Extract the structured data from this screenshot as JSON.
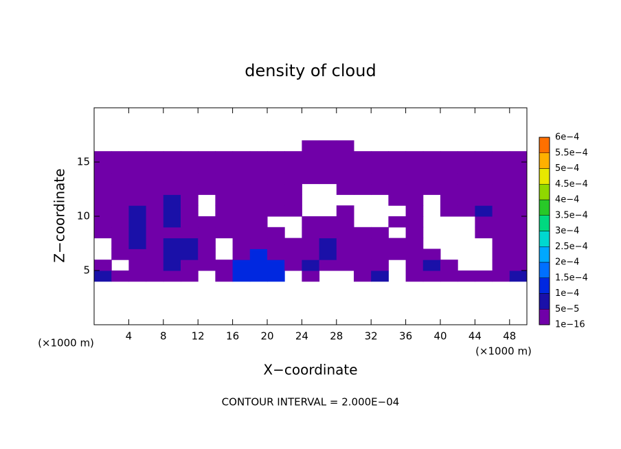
{
  "chart_data": {
    "type": "contour",
    "title": "density of cloud",
    "x_label": "X−coordinate",
    "y_label": "Z−coordinate",
    "x_unit": "(×1000 m)",
    "y_unit": "(×1000 m)",
    "footnote": "CONTOUR INTERVAL = 2.000E−04",
    "xlim": [
      0,
      50
    ],
    "ylim": [
      0,
      20
    ],
    "xticks": [
      4,
      8,
      12,
      16,
      20,
      24,
      28,
      32,
      36,
      40,
      44,
      48
    ],
    "yticks": [
      5,
      10,
      15
    ],
    "x": [
      1,
      3,
      5,
      7,
      9,
      11,
      13,
      15,
      17,
      19,
      21,
      23,
      25,
      27,
      29,
      31,
      33,
      35,
      37,
      39,
      41,
      43,
      45,
      47,
      49
    ],
    "z": [
      4.5,
      5.5,
      6.5,
      7.5,
      8.5,
      9.5,
      10.5,
      11.5,
      12.5,
      13.5,
      14.5,
      15.5,
      16.5
    ],
    "values": [
      [
        6e-05,
        2e-05,
        2e-05,
        2e-05,
        2e-05,
        2e-05,
        null,
        2e-05,
        0.00012,
        0.00012,
        0.00012,
        null,
        2e-05,
        null,
        null,
        2e-05,
        6e-05,
        null,
        2e-05,
        2e-05,
        2e-05,
        2e-05,
        2e-05,
        2e-05,
        6e-05
      ],
      [
        2e-05,
        null,
        2e-05,
        2e-05,
        6e-05,
        2e-05,
        2e-05,
        2e-05,
        0.00012,
        0.00012,
        0.00012,
        2e-05,
        6e-05,
        2e-05,
        2e-05,
        2e-05,
        2e-05,
        null,
        2e-05,
        6e-05,
        2e-05,
        null,
        null,
        2e-05,
        2e-05
      ],
      [
        null,
        2e-05,
        2e-05,
        2e-05,
        6e-05,
        6e-05,
        2e-05,
        null,
        2e-05,
        0.00012,
        2e-05,
        2e-05,
        2e-05,
        6e-05,
        2e-05,
        2e-05,
        2e-05,
        2e-05,
        2e-05,
        2e-05,
        null,
        null,
        null,
        2e-05,
        2e-05
      ],
      [
        null,
        2e-05,
        6e-05,
        2e-05,
        6e-05,
        6e-05,
        2e-05,
        null,
        2e-05,
        2e-05,
        2e-05,
        2e-05,
        2e-05,
        6e-05,
        2e-05,
        2e-05,
        2e-05,
        2e-05,
        2e-05,
        null,
        null,
        null,
        null,
        2e-05,
        2e-05
      ],
      [
        2e-05,
        2e-05,
        6e-05,
        2e-05,
        2e-05,
        2e-05,
        2e-05,
        2e-05,
        2e-05,
        2e-05,
        2e-05,
        null,
        2e-05,
        2e-05,
        2e-05,
        2e-05,
        2e-05,
        null,
        2e-05,
        null,
        null,
        null,
        2e-05,
        2e-05,
        2e-05
      ],
      [
        2e-05,
        2e-05,
        6e-05,
        2e-05,
        6e-05,
        2e-05,
        2e-05,
        2e-05,
        2e-05,
        2e-05,
        null,
        null,
        2e-05,
        2e-05,
        2e-05,
        null,
        null,
        2e-05,
        2e-05,
        null,
        null,
        null,
        2e-05,
        2e-05,
        2e-05
      ],
      [
        2e-05,
        2e-05,
        6e-05,
        2e-05,
        6e-05,
        2e-05,
        null,
        2e-05,
        2e-05,
        2e-05,
        2e-05,
        2e-05,
        null,
        null,
        2e-05,
        null,
        null,
        null,
        2e-05,
        null,
        2e-05,
        2e-05,
        6e-05,
        2e-05,
        2e-05
      ],
      [
        2e-05,
        2e-05,
        2e-05,
        2e-05,
        6e-05,
        2e-05,
        null,
        2e-05,
        2e-05,
        2e-05,
        2e-05,
        2e-05,
        null,
        null,
        null,
        null,
        null,
        2e-05,
        2e-05,
        null,
        2e-05,
        2e-05,
        2e-05,
        2e-05,
        2e-05
      ],
      [
        2e-05,
        2e-05,
        2e-05,
        2e-05,
        2e-05,
        2e-05,
        2e-05,
        2e-05,
        2e-05,
        2e-05,
        2e-05,
        2e-05,
        null,
        null,
        2e-05,
        2e-05,
        2e-05,
        2e-05,
        2e-05,
        2e-05,
        2e-05,
        2e-05,
        2e-05,
        2e-05,
        2e-05
      ],
      [
        2e-05,
        2e-05,
        2e-05,
        2e-05,
        2e-05,
        2e-05,
        2e-05,
        2e-05,
        2e-05,
        2e-05,
        2e-05,
        2e-05,
        2e-05,
        2e-05,
        2e-05,
        2e-05,
        2e-05,
        2e-05,
        2e-05,
        2e-05,
        2e-05,
        2e-05,
        2e-05,
        2e-05,
        2e-05
      ],
      [
        2e-05,
        2e-05,
        2e-05,
        2e-05,
        2e-05,
        2e-05,
        2e-05,
        2e-05,
        2e-05,
        2e-05,
        2e-05,
        2e-05,
        2e-05,
        2e-05,
        2e-05,
        2e-05,
        2e-05,
        2e-05,
        2e-05,
        2e-05,
        2e-05,
        2e-05,
        2e-05,
        2e-05,
        2e-05
      ],
      [
        2e-05,
        2e-05,
        2e-05,
        2e-05,
        2e-05,
        2e-05,
        2e-05,
        2e-05,
        2e-05,
        2e-05,
        2e-05,
        2e-05,
        2e-05,
        2e-05,
        2e-05,
        2e-05,
        2e-05,
        2e-05,
        2e-05,
        2e-05,
        2e-05,
        2e-05,
        2e-05,
        2e-05,
        2e-05
      ],
      [
        null,
        null,
        null,
        null,
        null,
        null,
        null,
        null,
        null,
        null,
        null,
        null,
        2e-05,
        2e-05,
        2e-05,
        null,
        null,
        null,
        null,
        null,
        null,
        null,
        null,
        null,
        null
      ]
    ],
    "levels": [
      {
        "value": 1e-16,
        "label": "1e−16"
      },
      {
        "value": 5e-05,
        "label": "5e−5"
      },
      {
        "value": 0.0001,
        "label": "1e−4"
      },
      {
        "value": 0.00015,
        "label": "1.5e−4"
      },
      {
        "value": 0.0002,
        "label": "2e−4"
      },
      {
        "value": 0.00025,
        "label": "2.5e−4"
      },
      {
        "value": 0.0003,
        "label": "3e−4"
      },
      {
        "value": 0.00035,
        "label": "3.5e−4"
      },
      {
        "value": 0.0004,
        "label": "4e−4"
      },
      {
        "value": 0.00045,
        "label": "4.5e−4"
      },
      {
        "value": 0.0005,
        "label": "5e−4"
      },
      {
        "value": 0.00055,
        "label": "5.5e−4"
      },
      {
        "value": 0.0006,
        "label": "6e−4"
      }
    ],
    "colors": [
      "#7000a8",
      "#1a10a8",
      "#0028e0",
      "#0070ff",
      "#00a8ff",
      "#00d8d0",
      "#00d880",
      "#28c828",
      "#90d800",
      "#e8e800",
      "#ffb000",
      "#ff7000",
      "#ff3010",
      "#f08080"
    ]
  }
}
